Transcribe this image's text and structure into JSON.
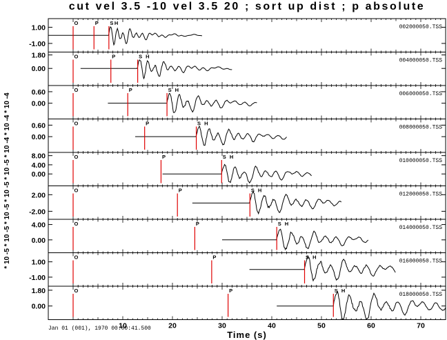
{
  "chart_data": {
    "type": "line",
    "title": "cut vel 3.5 -10 vel 3.5 20 ; sort up dist ; p absolute",
    "xlabel": "Time (s)",
    "date_label": "Jan 01 (001), 1970 00:00:41.500",
    "xlim": [
      -5,
      75
    ],
    "x_ticks": [
      10,
      20,
      30,
      40,
      50,
      60,
      70
    ],
    "y_exponent_labels": [
      "10 -4",
      "* 10 -4",
      "* 10 -4",
      "* 10 -5",
      "* 10 -5",
      "* 10 -5",
      "* 10 -5",
      "* 10 -5"
    ],
    "y_exponent_label_full": "* 10 -5 * 10 -5 * 10 -5 * 10 -5 * 10 -5 * 10 -4 * 10 -4 * 10 -4",
    "grid": false,
    "colors": {
      "trace": "#000000",
      "marker": "#e00000",
      "frame": "#000000"
    },
    "traces": [
      {
        "name": "002000050.TSS",
        "distance_km": 20,
        "yticks": [
          "1.00",
          "-1.00"
        ],
        "ytick_vals": [
          1.0,
          -1.0
        ],
        "ylim": [
          -1.9,
          1.9
        ],
        "o": 0,
        "p": 4.2,
        "s": 7.2,
        "h": 8.1,
        "start": -5,
        "end": 26,
        "amp": 1.7,
        "period": 1.3,
        "decay": 4.5
      },
      {
        "name": "004000050.TSS",
        "distance_km": 40,
        "yticks": [
          "1.80",
          "0.00"
        ],
        "ytick_vals": [
          1.8,
          0.0
        ],
        "ylim": [
          -2.1,
          2.0
        ],
        "o": 0,
        "p": 7.6,
        "s": 13.0,
        "h": 14.4,
        "start": 1.5,
        "end": 32,
        "amp": 1.8,
        "period": 1.6,
        "decay": 6.0
      },
      {
        "name": "006000050.TSS",
        "distance_km": 60,
        "yticks": [
          "0.60",
          "0.00"
        ],
        "ytick_vals": [
          0.6,
          0.0
        ],
        "ylim": [
          -0.75,
          0.85
        ],
        "o": 0,
        "p": 11.0,
        "s": 18.9,
        "h": 20.3,
        "start": 7.0,
        "end": 37,
        "amp": 0.68,
        "period": 1.9,
        "decay": 8.0
      },
      {
        "name": "008000050.TSS",
        "distance_km": 80,
        "yticks": [
          "0.60",
          "0.00"
        ],
        "ytick_vals": [
          0.6,
          0.0
        ],
        "ylim": [
          -0.75,
          0.85
        ],
        "o": 0,
        "p": 14.4,
        "s": 24.8,
        "h": 26.2,
        "start": 12.5,
        "end": 43,
        "amp": 0.65,
        "period": 2.0,
        "decay": 9.0
      },
      {
        "name": "010000050.TSS",
        "distance_km": 100,
        "yticks": [
          "8.00",
          "4.00",
          "0.00"
        ],
        "ytick_vals": [
          8.0,
          4.0,
          0.0
        ],
        "ylim": [
          -4.6,
          8.8
        ],
        "o": 0,
        "p": 17.7,
        "s": 29.9,
        "h": 31.3,
        "start": 18.0,
        "end": 48,
        "amp": 5.2,
        "period": 2.1,
        "decay": 10.0
      },
      {
        "name": "012000050.TSS",
        "distance_km": 120,
        "yticks": [
          "2.00",
          "-2.00"
        ],
        "ytick_vals": [
          2.0,
          -2.0
        ],
        "ylim": [
          -3.6,
          3.8
        ],
        "o": 0,
        "p": 21.0,
        "s": 35.6,
        "h": 37.0,
        "start": 24.0,
        "end": 54,
        "amp": 3.2,
        "period": 2.2,
        "decay": 11.0
      },
      {
        "name": "014000050.TSS",
        "distance_km": 140,
        "yticks": [
          "4.00",
          "0.00"
        ],
        "ytick_vals": [
          4.0,
          0.0
        ],
        "ylim": [
          -3.0,
          5.0
        ],
        "o": 0,
        "p": 24.5,
        "s": 41.0,
        "h": 42.4,
        "start": 30.0,
        "end": 59.5,
        "amp": 3.2,
        "period": 2.3,
        "decay": 12.0
      },
      {
        "name": "016000050.TSS",
        "distance_km": 160,
        "yticks": [
          "1.00",
          "-1.00"
        ],
        "ytick_vals": [
          1.0,
          -1.0
        ],
        "ylim": [
          -2.0,
          2.0
        ],
        "o": 0,
        "p": 27.9,
        "s": 46.6,
        "h": 48.0,
        "start": 35.5,
        "end": 65,
        "amp": 1.8,
        "period": 2.4,
        "decay": 13.0
      },
      {
        "name": "018000050.TSS",
        "distance_km": 180,
        "yticks": [
          "1.80",
          "0.00"
        ],
        "ytick_vals": [
          1.8,
          0.0
        ],
        "ylim": [
          -1.4,
          2.1
        ],
        "o": 0,
        "p": 31.2,
        "s": 52.4,
        "h": 53.8,
        "start": 41.0,
        "end": 75,
        "amp": 1.9,
        "period": 2.5,
        "decay": 14.0
      }
    ]
  }
}
